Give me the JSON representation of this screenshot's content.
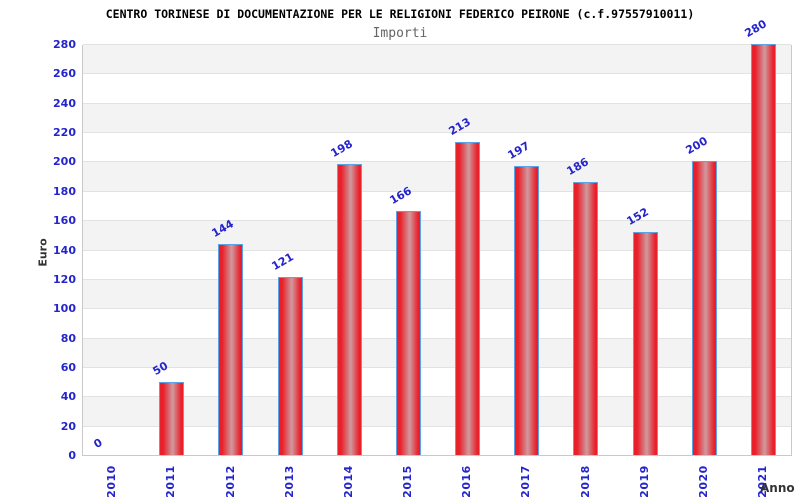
{
  "header": {
    "title": "CENTRO TORINESE DI DOCUMENTAZIONE PER LE RELIGIONI FEDERICO PEIRONE (c.f.97557910011)",
    "subtitle": "Importi"
  },
  "chart_data": {
    "type": "bar",
    "title": "CENTRO TORINESE DI DOCUMENTAZIONE PER LE RELIGIONI FEDERICO PEIRONE (c.f.97557910011)",
    "subtitle": "Importi",
    "xlabel": "Anno",
    "ylabel": "Euro",
    "categories": [
      "2010",
      "2011",
      "2012",
      "2013",
      "2014",
      "2015",
      "2016",
      "2017",
      "2018",
      "2019",
      "2020",
      "2021"
    ],
    "values": [
      0,
      50,
      144,
      121,
      198,
      166,
      213,
      197,
      186,
      152,
      200,
      280
    ],
    "ylim": [
      0,
      280
    ],
    "ytick_step": 20,
    "grid": "horizontal-alternating-bands",
    "legend": "none",
    "colors": {
      "bar_red": "#e9202a",
      "bar_highlight": "#cf9a9e",
      "bar_border": "#5ba3e8",
      "label_blue": "#2424cc",
      "band_gray": "#f3f3f3",
      "band_white": "#ffffff",
      "grid_line": "#e2e2e2",
      "plot_border": "#c9c9c9",
      "axis_title": "#333333",
      "title_color": "#000000",
      "subtitle_color": "#666666"
    }
  }
}
